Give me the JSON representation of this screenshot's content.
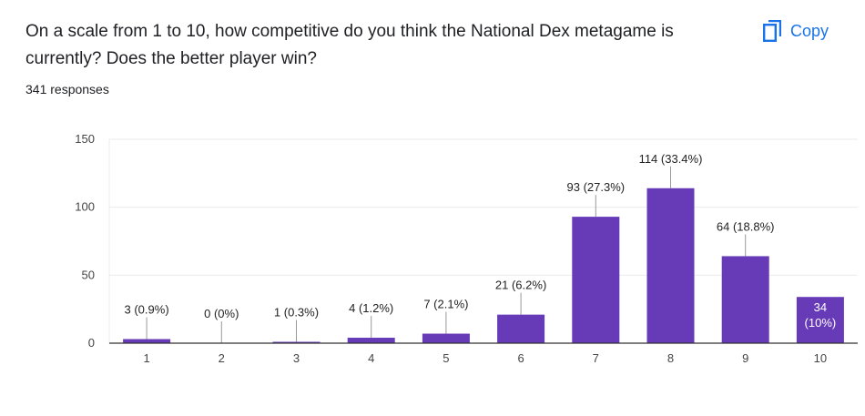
{
  "question": "On a scale from 1 to 10, how competitive do you think the National Dex metagame is currently? Does the better player win?",
  "responses": "341 responses",
  "copy_button": {
    "label": "Copy",
    "icon": "copy-icon"
  },
  "colors": {
    "bar": "#673ab7",
    "accent": "#1a73e8",
    "grid": "#ebebeb",
    "axis": "#333333"
  },
  "chart_data": {
    "type": "bar",
    "categories": [
      "1",
      "2",
      "3",
      "4",
      "5",
      "6",
      "7",
      "8",
      "9",
      "10"
    ],
    "values": [
      3,
      0,
      1,
      4,
      7,
      21,
      93,
      114,
      64,
      34
    ],
    "data_labels": [
      "3 (0.9%)",
      "0 (0%)",
      "1 (0.3%)",
      "4 (1.2%)",
      "7 (2.1%)",
      "21 (6.2%)",
      "93 (27.3%)",
      "114 (33.4%)",
      "64 (18.8%)",
      "34\n(10%)"
    ],
    "yticks": [
      0,
      50,
      100,
      150
    ],
    "ylim": [
      0,
      150
    ],
    "grid": true,
    "title": "",
    "xlabel": "",
    "ylabel": ""
  }
}
